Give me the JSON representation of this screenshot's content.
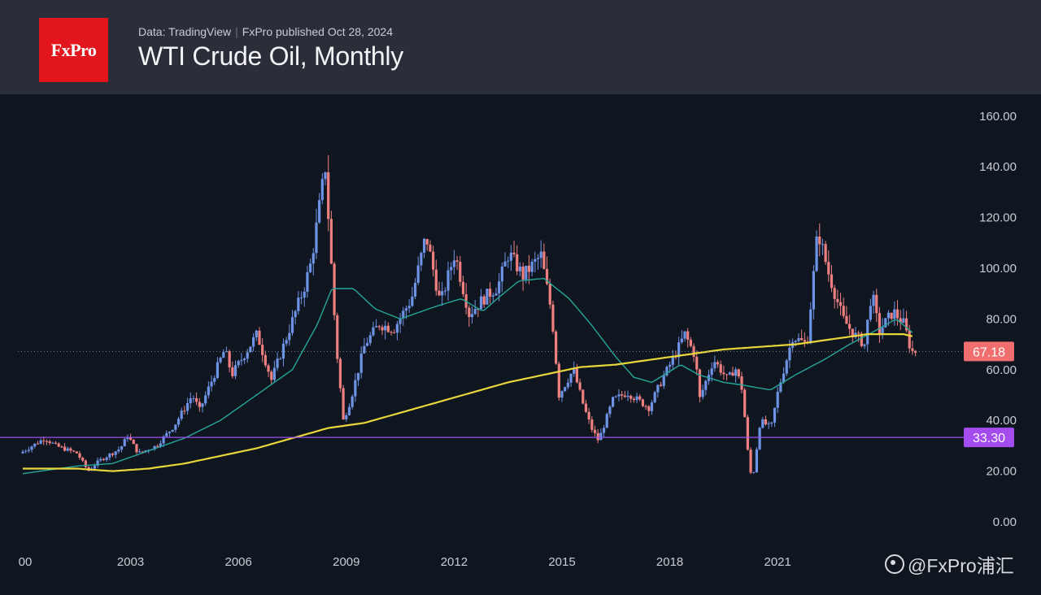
{
  "header": {
    "logo_text": "FxPro",
    "data_source": "Data: TradingView",
    "publisher": "FxPro published Oct 28, 2024",
    "title": "WTI Crude Oil, Monthly"
  },
  "watermark": {
    "text": "@FxPro浦汇"
  },
  "colors": {
    "up_candle": "#6e93e6",
    "down_candle": "#f08080",
    "ma_fast": "#26a69a",
    "ma_slow": "#e8d63a",
    "support_line": "#9c4df0",
    "price_label": "#f26d6d",
    "support_label": "#a54cf0",
    "background": "#0f1620",
    "header_bg": "#2a2e39",
    "logo_bg": "#e3161d"
  },
  "chart_data": {
    "type": "candlestick",
    "title": "WTI Crude Oil, Monthly",
    "y_ticks": [
      "160.00",
      "140.00",
      "120.00",
      "100.00",
      "80.00",
      "60.00",
      "40.00",
      "20.00",
      "0.00"
    ],
    "ylim": [
      0,
      160
    ],
    "x_ticks": [
      "00",
      "2003",
      "2006",
      "2009",
      "2012",
      "2015",
      "2018",
      "2021"
    ],
    "xlim": [
      2000.0,
      2024.9
    ],
    "current_price": {
      "label": "67.18",
      "value": 67.18
    },
    "support_level": {
      "label": "33.30",
      "value": 33.3
    },
    "price_anchors": [
      [
        2000.0,
        27
      ],
      [
        2000.7,
        33
      ],
      [
        2001.0,
        30
      ],
      [
        2001.6,
        27
      ],
      [
        2001.9,
        20
      ],
      [
        2002.2,
        24
      ],
      [
        2002.8,
        29
      ],
      [
        2003.0,
        34
      ],
      [
        2003.3,
        27
      ],
      [
        2003.8,
        30
      ],
      [
        2004.3,
        38
      ],
      [
        2004.8,
        50
      ],
      [
        2005.0,
        44
      ],
      [
        2005.7,
        68
      ],
      [
        2005.9,
        58
      ],
      [
        2006.6,
        74
      ],
      [
        2007.0,
        56
      ],
      [
        2007.5,
        76
      ],
      [
        2007.9,
        92
      ],
      [
        2008.1,
        102
      ],
      [
        2008.5,
        140
      ],
      [
        2008.8,
        70
      ],
      [
        2009.0,
        40
      ],
      [
        2009.2,
        48
      ],
      [
        2009.6,
        70
      ],
      [
        2010.0,
        78
      ],
      [
        2010.4,
        76
      ],
      [
        2010.9,
        88
      ],
      [
        2011.3,
        113
      ],
      [
        2011.7,
        86
      ],
      [
        2012.1,
        106
      ],
      [
        2012.5,
        82
      ],
      [
        2012.9,
        88
      ],
      [
        2013.3,
        93
      ],
      [
        2013.6,
        106
      ],
      [
        2014.0,
        97
      ],
      [
        2014.5,
        105
      ],
      [
        2014.8,
        82
      ],
      [
        2015.0,
        50
      ],
      [
        2015.4,
        60
      ],
      [
        2015.7,
        45
      ],
      [
        2015.9,
        37
      ],
      [
        2016.1,
        32
      ],
      [
        2016.5,
        48
      ],
      [
        2016.9,
        51
      ],
      [
        2017.5,
        45
      ],
      [
        2017.9,
        57
      ],
      [
        2018.2,
        65
      ],
      [
        2018.5,
        74
      ],
      [
        2018.8,
        65
      ],
      [
        2018.9,
        48
      ],
      [
        2019.3,
        64
      ],
      [
        2019.7,
        56
      ],
      [
        2019.9,
        61
      ],
      [
        2020.1,
        52
      ],
      [
        2020.3,
        20
      ],
      [
        2020.4,
        18
      ],
      [
        2020.6,
        40
      ],
      [
        2020.9,
        37
      ],
      [
        2021.1,
        52
      ],
      [
        2021.5,
        73
      ],
      [
        2021.9,
        70
      ],
      [
        2022.2,
        115
      ],
      [
        2022.5,
        98
      ],
      [
        2022.9,
        80
      ],
      [
        2023.2,
        74
      ],
      [
        2023.5,
        70
      ],
      [
        2023.7,
        91
      ],
      [
        2023.9,
        75
      ],
      [
        2024.3,
        83
      ],
      [
        2024.6,
        78
      ],
      [
        2024.8,
        67.2
      ]
    ],
    "ma_fast_anchors": [
      [
        2000.0,
        19
      ],
      [
        2001.5,
        22
      ],
      [
        2002.5,
        23
      ],
      [
        2003.5,
        28
      ],
      [
        2004.5,
        33
      ],
      [
        2005.5,
        40
      ],
      [
        2006.5,
        50
      ],
      [
        2007.5,
        60
      ],
      [
        2008.2,
        78
      ],
      [
        2008.6,
        92
      ],
      [
        2009.2,
        92
      ],
      [
        2009.8,
        84
      ],
      [
        2010.5,
        80
      ],
      [
        2011.5,
        85
      ],
      [
        2012.2,
        88
      ],
      [
        2012.8,
        83
      ],
      [
        2013.2,
        88
      ],
      [
        2013.8,
        95
      ],
      [
        2014.5,
        96
      ],
      [
        2015.2,
        88
      ],
      [
        2015.8,
        78
      ],
      [
        2016.5,
        65
      ],
      [
        2017.0,
        57
      ],
      [
        2017.5,
        55
      ],
      [
        2018.3,
        62
      ],
      [
        2018.8,
        58
      ],
      [
        2019.5,
        55
      ],
      [
        2020.0,
        54
      ],
      [
        2020.8,
        52
      ],
      [
        2021.5,
        58
      ],
      [
        2022.3,
        64
      ],
      [
        2023.0,
        70
      ],
      [
        2023.8,
        76
      ],
      [
        2024.3,
        80
      ],
      [
        2024.8,
        74
      ]
    ],
    "ma_slow_anchors": [
      [
        2000.0,
        21
      ],
      [
        2001.5,
        21
      ],
      [
        2002.5,
        20
      ],
      [
        2003.5,
        21
      ],
      [
        2004.5,
        23
      ],
      [
        2005.5,
        26
      ],
      [
        2006.5,
        29
      ],
      [
        2007.5,
        33
      ],
      [
        2008.5,
        37
      ],
      [
        2009.5,
        39
      ],
      [
        2010.5,
        43
      ],
      [
        2011.5,
        47
      ],
      [
        2012.5,
        51
      ],
      [
        2013.5,
        55
      ],
      [
        2014.5,
        58
      ],
      [
        2015.5,
        61
      ],
      [
        2016.5,
        62
      ],
      [
        2017.5,
        64
      ],
      [
        2018.5,
        66
      ],
      [
        2019.5,
        68
      ],
      [
        2020.5,
        69
      ],
      [
        2021.5,
        70
      ],
      [
        2022.5,
        72
      ],
      [
        2023.5,
        74
      ],
      [
        2024.5,
        74
      ],
      [
        2024.8,
        73
      ]
    ]
  }
}
